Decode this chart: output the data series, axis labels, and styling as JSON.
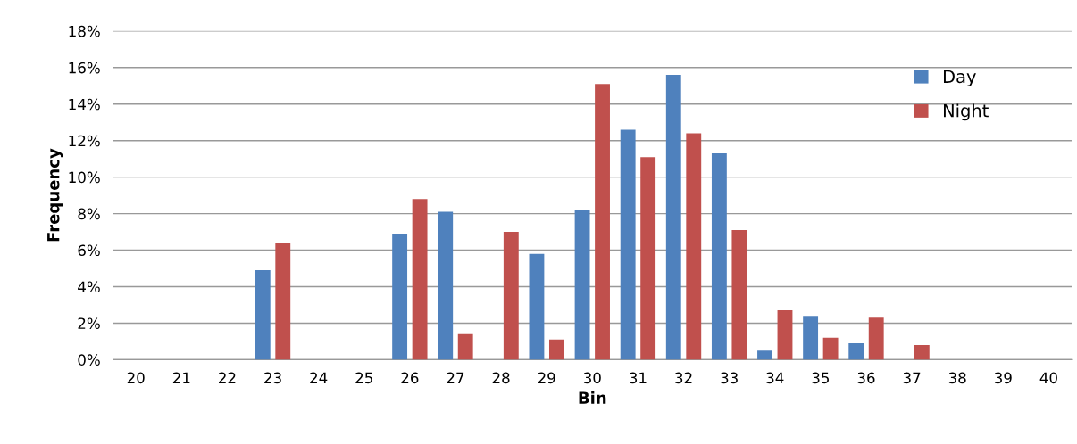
{
  "chart_data": {
    "type": "bar",
    "xlabel": "Bin",
    "ylabel": "Frequency",
    "categories": [
      "20",
      "21",
      "22",
      "23",
      "24",
      "25",
      "26",
      "27",
      "28",
      "29",
      "30",
      "31",
      "32",
      "33",
      "34",
      "35",
      "36",
      "37",
      "38",
      "39",
      "40"
    ],
    "series": [
      {
        "name": "Day",
        "color": "#4f81bd",
        "values": [
          0,
          0,
          0,
          4.9,
          0,
          0,
          6.9,
          8.1,
          0,
          5.8,
          8.2,
          12.6,
          15.6,
          11.3,
          0.5,
          2.4,
          0.9,
          0,
          0,
          0,
          0
        ]
      },
      {
        "name": "Night",
        "color": "#c0504d",
        "values": [
          0,
          0,
          0,
          6.4,
          0,
          0,
          8.8,
          1.4,
          7.0,
          1.1,
          15.1,
          11.1,
          12.4,
          7.1,
          2.7,
          1.2,
          2.3,
          0.8,
          0,
          0,
          0
        ]
      }
    ],
    "ylim": [
      0,
      18
    ],
    "yticks": [
      {
        "value": 0,
        "label": "0%"
      },
      {
        "value": 2,
        "label": "2%"
      },
      {
        "value": 4,
        "label": "4%"
      },
      {
        "value": 6,
        "label": "6%"
      },
      {
        "value": 8,
        "label": "8%"
      },
      {
        "value": 10,
        "label": "10%"
      },
      {
        "value": 12,
        "label": "12%"
      },
      {
        "value": 14,
        "label": "14%"
      },
      {
        "value": 16,
        "label": "16%"
      },
      {
        "value": 18,
        "label": "18%"
      }
    ],
    "grid": "y",
    "legend": "top right"
  }
}
